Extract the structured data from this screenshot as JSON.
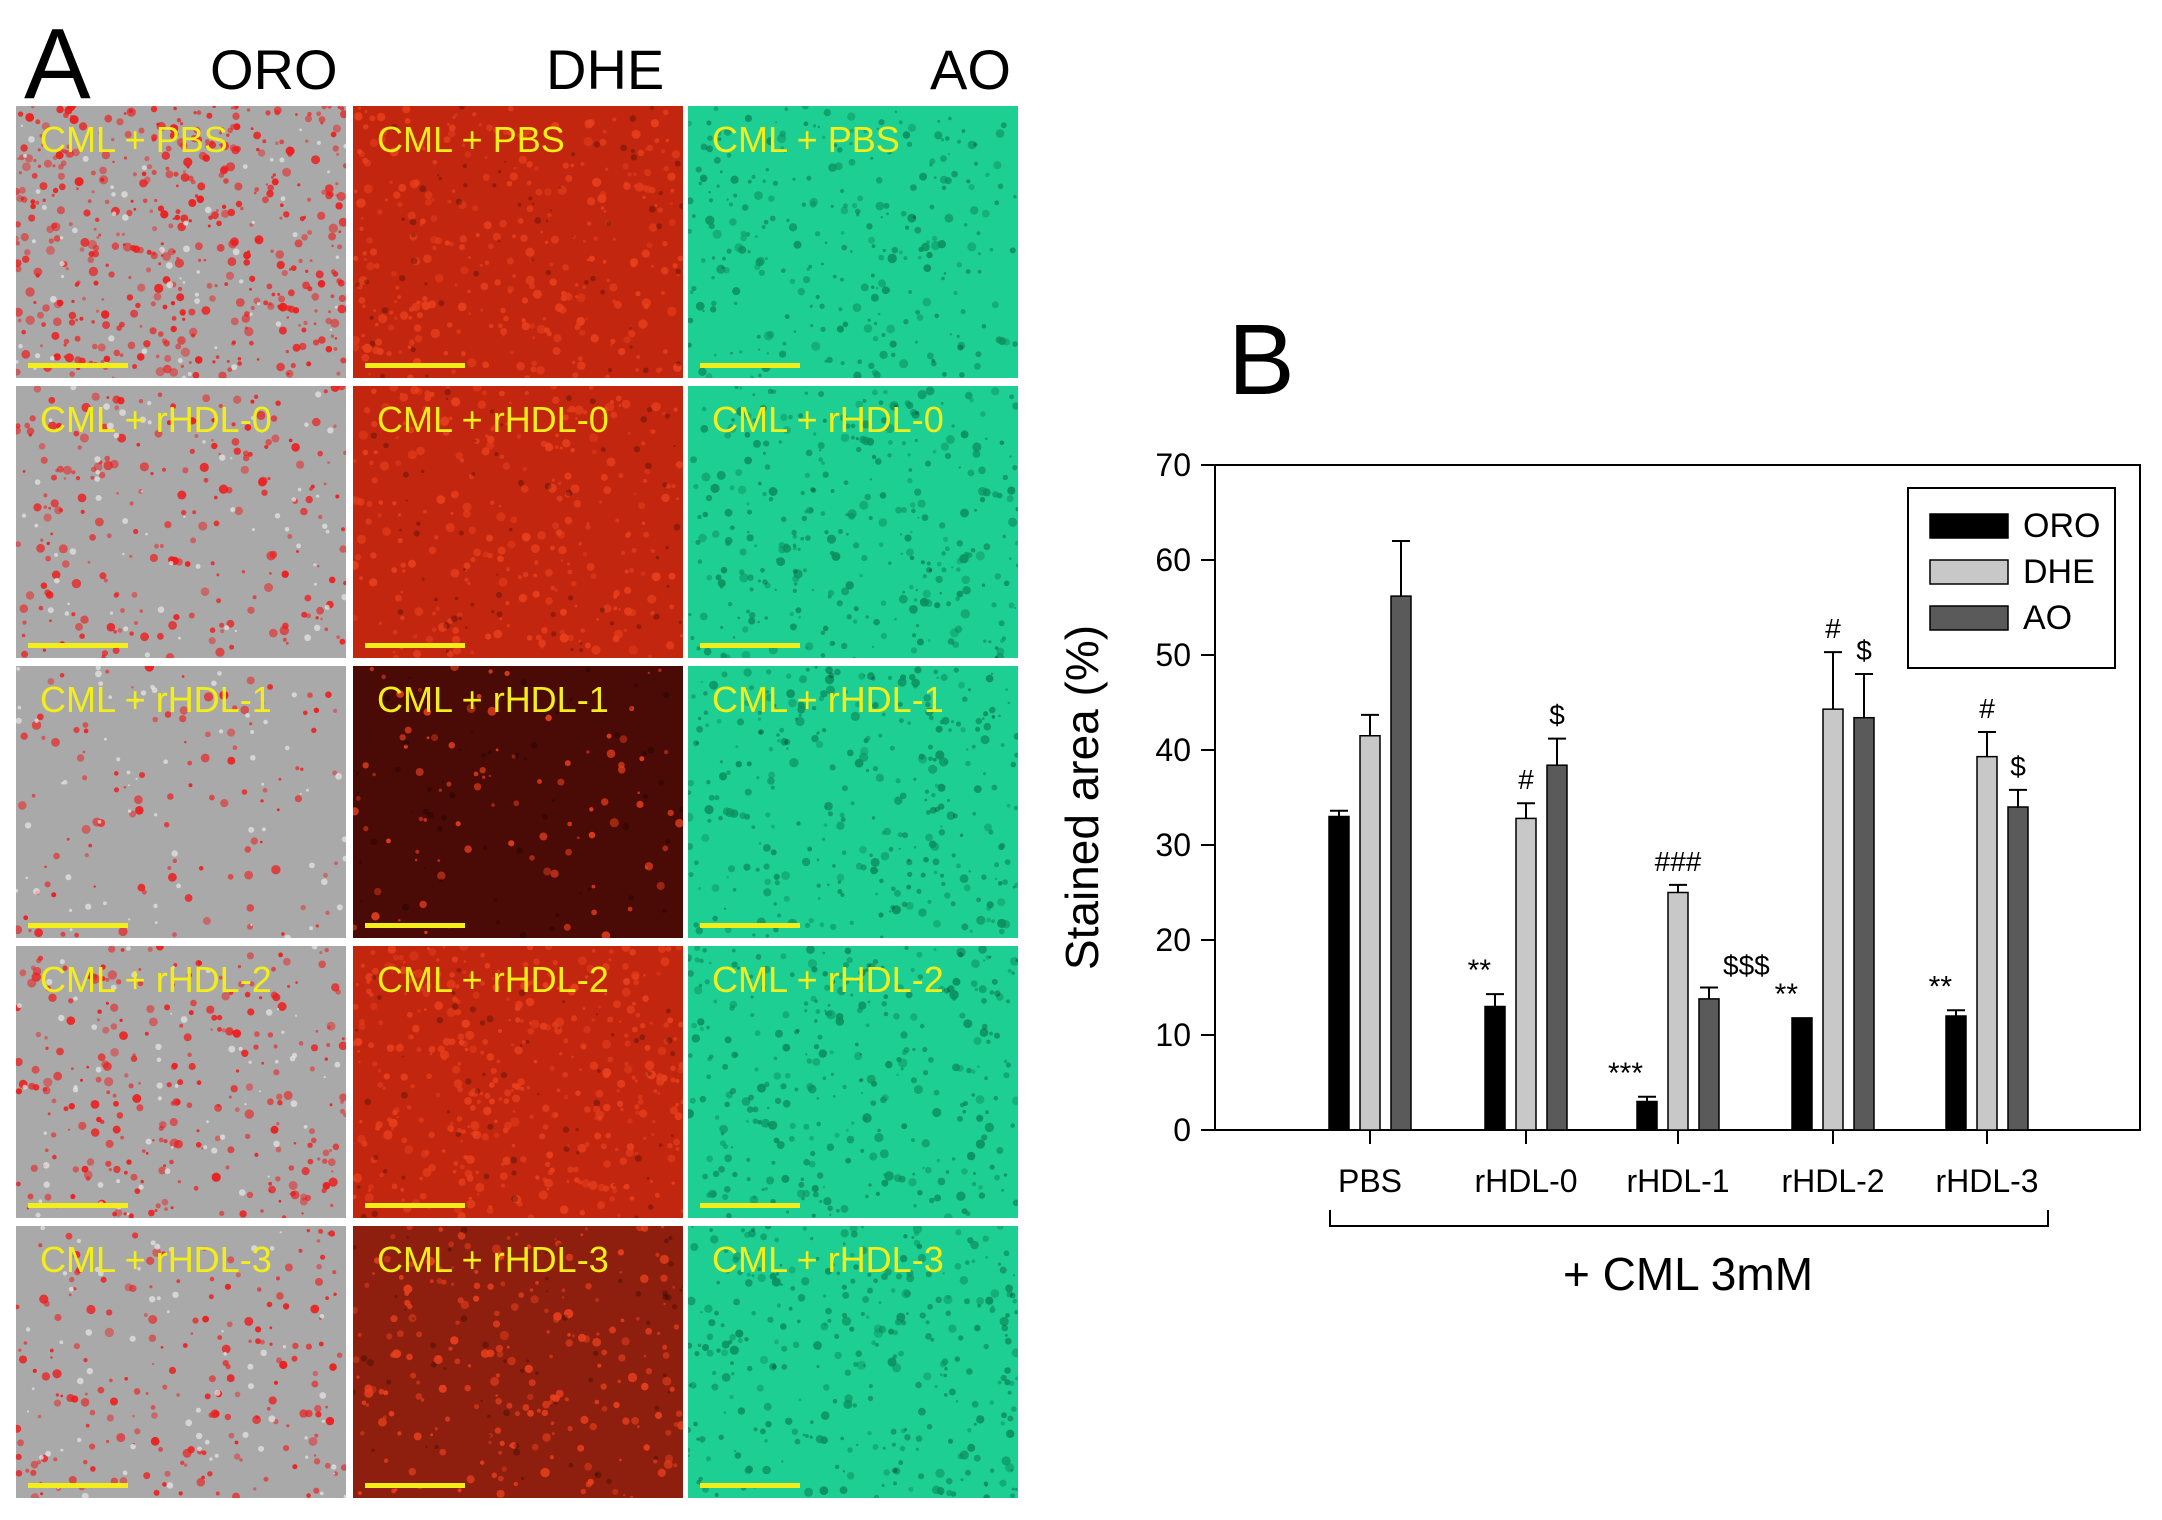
{
  "panel_a": {
    "letter": "A",
    "columns": [
      "ORO",
      "DHE",
      "AO"
    ],
    "column_colors": {
      "ORO": {
        "base": "#a9a9a9",
        "dots": "#ee1c1c"
      },
      "DHE": {
        "base": "#c3260f",
        "dots": "#e8401d"
      },
      "AO": {
        "base": "#1ecf94",
        "dots": "#0c8f5e"
      }
    },
    "rows": [
      {
        "label": "CML + PBS"
      },
      {
        "label": "CML + rHDL-0"
      },
      {
        "label": "CML + rHDL-1"
      },
      {
        "label": "CML + rHDL-2"
      },
      {
        "label": "CML + rHDL-3"
      }
    ],
    "label_color": "#f3ee1a"
  },
  "panel_b": {
    "letter": "B",
    "chart_data": {
      "type": "bar",
      "categories": [
        "PBS",
        "rHDL-0",
        "rHDL-1",
        "rHDL-2",
        "rHDL-3"
      ],
      "series": [
        {
          "name": "ORO",
          "color": "#000000",
          "values": [
            33,
            13,
            3,
            11.8,
            12
          ],
          "errors": [
            0.6,
            1.3,
            0.5,
            0,
            0.6
          ],
          "annotations": [
            "",
            "**",
            "***",
            "**",
            "**"
          ]
        },
        {
          "name": "DHE",
          "color": "#c8c8c8",
          "values": [
            41.5,
            32.8,
            25,
            44.3,
            39.3
          ],
          "errors": [
            2.2,
            1.6,
            0.8,
            6,
            2.6
          ],
          "annotations": [
            "",
            "#",
            "###",
            "#",
            "#"
          ]
        },
        {
          "name": "AO",
          "color": "#5a5a5a",
          "values": [
            56.2,
            38.4,
            13.8,
            43.4,
            34
          ],
          "errors": [
            5.8,
            2.8,
            1.2,
            4.6,
            1.8
          ],
          "annotations": [
            "",
            "$",
            "$$$",
            "$",
            "$"
          ]
        }
      ],
      "ylabel": "Stained area (%)",
      "xlabel": "+ CML 3mM",
      "ylim": [
        0,
        70
      ],
      "yticks": [
        0,
        10,
        20,
        30,
        40,
        50,
        60,
        70
      ],
      "legend_position": "top-right",
      "grid": false
    }
  }
}
